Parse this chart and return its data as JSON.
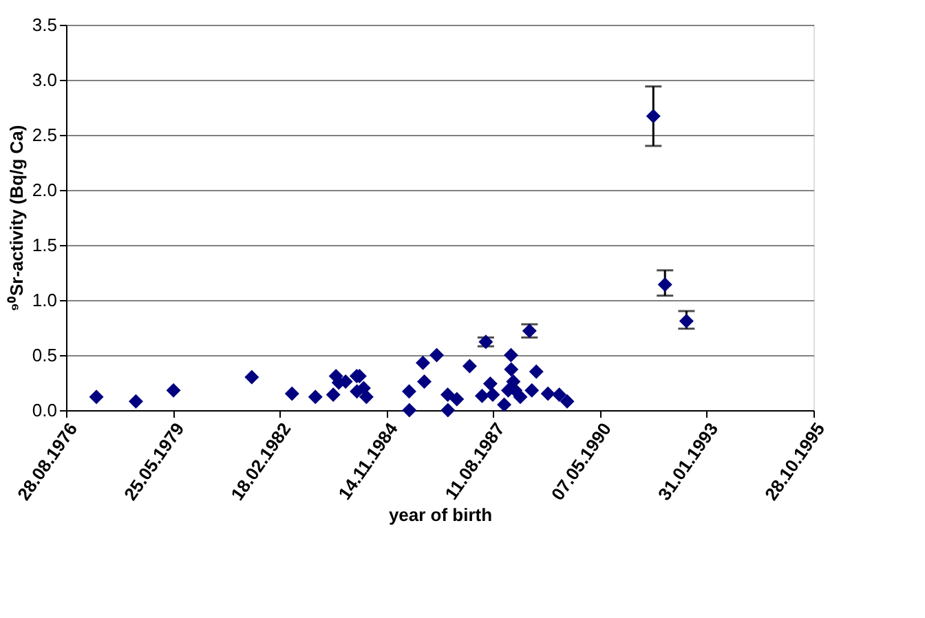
{
  "chart_data": {
    "type": "scatter",
    "xlabel": "year of birth",
    "ylabel": "⁹⁰Sr-activity (Bq/g Ca)",
    "x": [
      "1977-06-08",
      "1978-06-13",
      "1979-05-31",
      "1981-06-02",
      "1982-06-14",
      "1983-01-19",
      "1983-07-05",
      "1983-07-31",
      "1983-08-26",
      "1983-10-29",
      "1984-02-10",
      "1984-02-12",
      "1984-03-07",
      "1984-04-15",
      "1984-05-11",
      "1985-06-15",
      "1985-06-17",
      "1985-10-22",
      "1985-11-04",
      "1986-02-28",
      "1986-06-11",
      "1986-06-13",
      "1986-09-05",
      "1987-01-03",
      "1987-04-29",
      "1987-06-03",
      "1987-07-15",
      "1987-08-07",
      "1987-11-22",
      "1987-12-30",
      "1988-01-25",
      "1988-01-27",
      "1988-02-16",
      "1988-03-05",
      "1988-04-21",
      "1988-07-16",
      "1988-08-07",
      "1988-09-18",
      "1989-01-05",
      "1989-04-21",
      "1989-07-04",
      "1991-09-19",
      "1992-01-06",
      "1992-07-25"
    ],
    "series": [
      {
        "color": "#000080",
        "values": [
          0.12,
          0.08,
          0.18,
          0.3,
          0.15,
          0.12,
          0.14,
          0.31,
          0.25,
          0.26,
          0.31,
          0.17,
          0.31,
          0.2,
          0.12,
          0.17,
          0.0,
          0.43,
          0.26,
          0.5,
          0.14,
          0.0,
          0.1,
          0.4,
          0.13,
          0.62,
          0.24,
          0.14,
          0.05,
          0.18,
          0.5,
          0.37,
          0.26,
          0.18,
          0.12,
          0.72,
          0.18,
          0.35,
          0.15,
          0.14,
          0.08,
          2.67,
          1.14,
          0.81
        ],
        "errors": [
          null,
          null,
          null,
          null,
          null,
          null,
          null,
          null,
          null,
          null,
          null,
          null,
          null,
          null,
          null,
          null,
          null,
          null,
          null,
          null,
          null,
          null,
          null,
          null,
          null,
          0.04,
          null,
          null,
          null,
          null,
          null,
          null,
          null,
          null,
          null,
          0.06,
          null,
          null,
          null,
          null,
          null,
          [
            2.4,
            2.94
          ],
          [
            1.04,
            1.27
          ],
          [
            0.74,
            0.9
          ]
        ]
      }
    ],
    "marker": "diamond",
    "grid": "y",
    "xlim": [
      "1976-08-28",
      "1995-10-28"
    ],
    "xticks": [
      {
        "value": "1976-08-28",
        "label": "28.08.1976"
      },
      {
        "value": "1979-05-25",
        "label": "25.05.1979"
      },
      {
        "value": "1982-02-18",
        "label": "18.02.1982"
      },
      {
        "value": "1984-11-14",
        "label": "14.11.1984"
      },
      {
        "value": "1987-08-11",
        "label": "11.08.1987"
      },
      {
        "value": "1990-05-07",
        "label": "07.05.1990"
      },
      {
        "value": "1993-01-31",
        "label": "31.01.1993"
      },
      {
        "value": "1995-10-28",
        "label": "28.10.1995"
      }
    ],
    "ylim": [
      0,
      3.5
    ],
    "yticks": [
      {
        "value": 0,
        "label": "0.0"
      },
      {
        "value": 0.5,
        "label": "0.5"
      },
      {
        "value": 1,
        "label": "1.0"
      },
      {
        "value": 1.5,
        "label": "1.5"
      },
      {
        "value": 2,
        "label": "2.0"
      },
      {
        "value": 2.5,
        "label": "2.5"
      },
      {
        "value": 3,
        "label": "3.0"
      },
      {
        "value": 3.5,
        "label": "3.5"
      }
    ]
  }
}
